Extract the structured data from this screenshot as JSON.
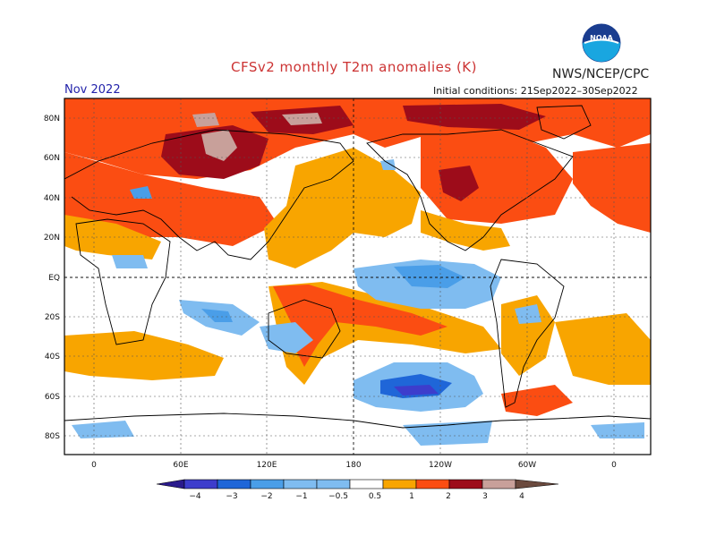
{
  "title": "CFSv2 monthly T2m anomalies (K)",
  "organization": "NWS/NCEP/CPC",
  "logo_text": "NOAA",
  "valid_month": "Nov 2022",
  "initial_conditions": "Initial conditions: 21Sep2022–30Sep2022",
  "lat_labels": [
    "80N",
    "60N",
    "40N",
    "20N",
    "EQ",
    "20S",
    "40S",
    "60S",
    "80S"
  ],
  "lon_labels": [
    "0",
    "60E",
    "120E",
    "180",
    "120W",
    "60W",
    "0"
  ],
  "colorbar": {
    "labels": [
      "−4",
      "−3",
      "−2",
      "−1",
      "−0.5",
      "0.5",
      "1",
      "2",
      "3",
      "4"
    ],
    "colors": [
      "#2a1a8c",
      "#3d3dcc",
      "#1f66d8",
      "#4a9ee8",
      "#7fbcf0",
      "#ffffff",
      "#f8a500",
      "#fb4d12",
      "#e0200e",
      "#9d0c1a",
      "#c8a09a",
      "#6b4a3e"
    ]
  },
  "colors": {
    "title": "#cc3333",
    "month": "#2222aa",
    "warm_weak": "#f8a500",
    "warm_mid": "#fb4d12",
    "warm_strong": "#e0200e",
    "warm_very": "#9d0c1a",
    "warm_extreme": "#c8a09a",
    "cold_weak": "#7fbcf0",
    "cold_mid": "#4a9ee8",
    "cold_strong": "#1f66d8",
    "cold_very": "#3d3dcc"
  }
}
